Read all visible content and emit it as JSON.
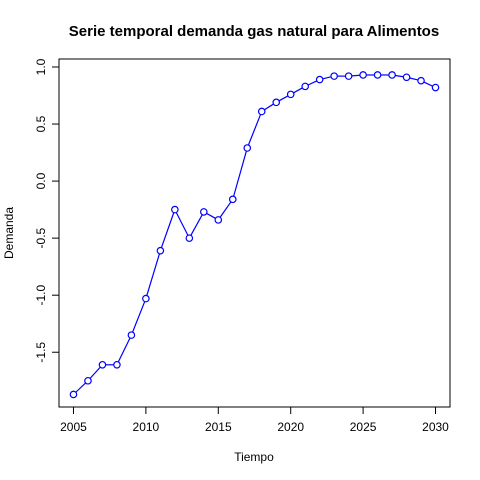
{
  "chart_data": {
    "type": "line",
    "title": "Serie temporal demanda gas natural para Alimentos",
    "xlabel": "Tiempo",
    "ylabel": "Demanda",
    "xlim": [
      2004.0,
      2031.0
    ],
    "ylim": [
      -1.98,
      1.07
    ],
    "x_ticks": [
      2005,
      2010,
      2015,
      2020,
      2025,
      2030
    ],
    "x_tick_labels": [
      "2005",
      "2010",
      "2015",
      "2020",
      "2025",
      "2030"
    ],
    "y_ticks": [
      -1.5,
      -1.0,
      -0.5,
      0.0,
      0.5,
      1.0
    ],
    "y_tick_labels": [
      "-1.5",
      "-1.0",
      "-0.5",
      "0.0",
      "0.5",
      "1.0"
    ],
    "grid": false,
    "color": "#0000ff",
    "marker": "open-circle",
    "series": [
      {
        "x": [
          2005,
          2006,
          2007,
          2008,
          2009,
          2010,
          2011,
          2012,
          2013,
          2014,
          2015,
          2016,
          2017,
          2018,
          2019,
          2020,
          2021,
          2022,
          2023,
          2024,
          2025,
          2026,
          2027,
          2028,
          2029,
          2030
        ],
        "values": [
          -1.87,
          -1.75,
          -1.61,
          -1.61,
          -1.35,
          -1.03,
          -0.61,
          -0.25,
          -0.5,
          -0.27,
          -0.34,
          -0.16,
          0.29,
          0.61,
          0.69,
          0.76,
          0.83,
          0.89,
          0.92,
          0.92,
          0.93,
          0.93,
          0.93,
          0.91,
          0.88,
          0.82
        ]
      }
    ]
  }
}
